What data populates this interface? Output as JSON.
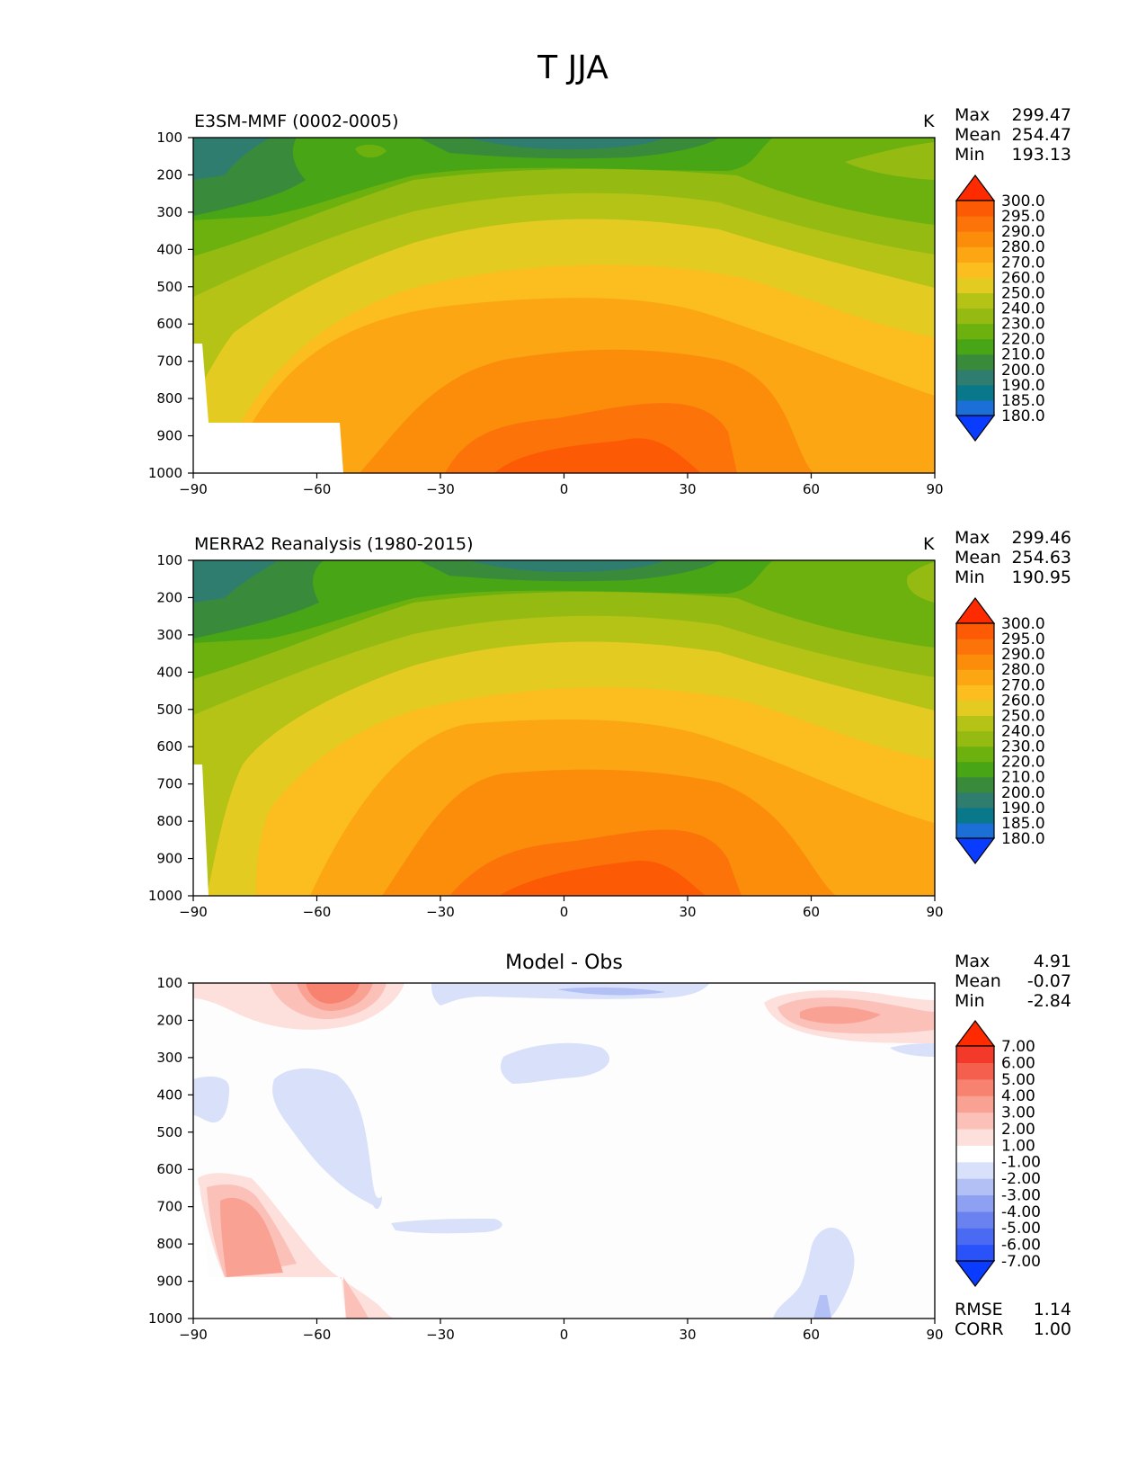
{
  "figure_title": "T JJA",
  "chart_data": [
    {
      "type": "heatmap",
      "title": "E3SM-MMF (0002-0005)",
      "units": "K",
      "stats": {
        "max_label": "Max",
        "max": "299.47",
        "mean_label": "Mean",
        "mean": "254.47",
        "min_label": "Min",
        "min": "193.13"
      },
      "x_ticks": [
        "−90",
        "−60",
        "−30",
        "0",
        "30",
        "60",
        "90"
      ],
      "y_ticks": [
        "100",
        "200",
        "300",
        "400",
        "500",
        "600",
        "700",
        "800",
        "900",
        "1000"
      ],
      "xlim": [
        -90,
        90
      ],
      "ylim": [
        100,
        1000
      ],
      "colorbar_levels": [
        "180.0",
        "185.0",
        "190.0",
        "200.0",
        "210.0",
        "220.0",
        "230.0",
        "240.0",
        "250.0",
        "260.0",
        "270.0",
        "280.0",
        "290.0",
        "295.0",
        "300.0"
      ],
      "colorbar_colors": [
        "#0a3cff",
        "#1b6fd6",
        "#08788a",
        "#2e7d6e",
        "#3a8a3c",
        "#48a515",
        "#6db10f",
        "#95bb12",
        "#b5c216",
        "#e3cb22",
        "#fbbe1e",
        "#fba612",
        "#fb8d0a",
        "#fc730a",
        "#fd5a05",
        "#ff2b00"
      ]
    },
    {
      "type": "heatmap",
      "title": "MERRA2 Reanalysis (1980-2015)",
      "units": "K",
      "stats": {
        "max_label": "Max",
        "max": "299.46",
        "mean_label": "Mean",
        "mean": "254.63",
        "min_label": "Min",
        "min": "190.95"
      },
      "x_ticks": [
        "−90",
        "−60",
        "−30",
        "0",
        "30",
        "60",
        "90"
      ],
      "y_ticks": [
        "100",
        "200",
        "300",
        "400",
        "500",
        "600",
        "700",
        "800",
        "900",
        "1000"
      ],
      "xlim": [
        -90,
        90
      ],
      "ylim": [
        100,
        1000
      ],
      "colorbar_levels": [
        "180.0",
        "185.0",
        "190.0",
        "200.0",
        "210.0",
        "220.0",
        "230.0",
        "240.0",
        "250.0",
        "260.0",
        "270.0",
        "280.0",
        "290.0",
        "295.0",
        "300.0"
      ],
      "colorbar_colors": [
        "#0a3cff",
        "#1b6fd6",
        "#08788a",
        "#2e7d6e",
        "#3a8a3c",
        "#48a515",
        "#6db10f",
        "#95bb12",
        "#b5c216",
        "#e3cb22",
        "#fbbe1e",
        "#fba612",
        "#fb8d0a",
        "#fc730a",
        "#fd5a05",
        "#ff2b00"
      ]
    },
    {
      "type": "heatmap",
      "title": "Model - Obs",
      "stats": {
        "max_label": "Max",
        "max": "4.91",
        "mean_label": "Mean",
        "mean": "-0.07",
        "min_label": "Min",
        "min": "-2.84"
      },
      "extra_stats": {
        "rmse_label": "RMSE",
        "rmse": "1.14",
        "corr_label": "CORR",
        "corr": "1.00"
      },
      "x_ticks": [
        "−90",
        "−60",
        "−30",
        "0",
        "30",
        "60",
        "90"
      ],
      "y_ticks": [
        "100",
        "200",
        "300",
        "400",
        "500",
        "600",
        "700",
        "800",
        "900",
        "1000"
      ],
      "xlim": [
        -90,
        90
      ],
      "ylim": [
        100,
        1000
      ],
      "colorbar_levels": [
        "-7.00",
        "-6.00",
        "-5.00",
        "-4.00",
        "-3.00",
        "-2.00",
        "-1.00",
        "1.00",
        "2.00",
        "3.00",
        "4.00",
        "5.00",
        "6.00",
        "7.00"
      ],
      "colorbar_colors": [
        "#0a3cff",
        "#2a52fb",
        "#4a6af3",
        "#6a82f0",
        "#8ea0f2",
        "#b2c0f5",
        "#d8e0fa",
        "#ffffff",
        "#fde0dc",
        "#fbc0b8",
        "#f9a294",
        "#f78270",
        "#f5604e",
        "#f33a2a",
        "#ff2b00"
      ]
    }
  ]
}
